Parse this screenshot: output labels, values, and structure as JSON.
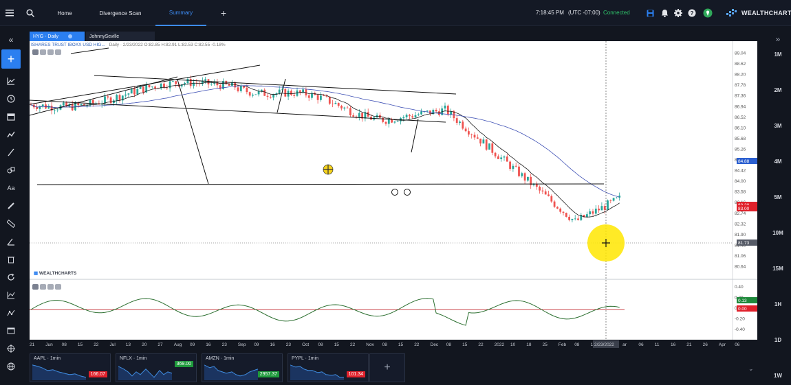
{
  "topbar": {
    "menu_icon": "hamburger-icon",
    "search_icon": "search-icon",
    "tabs": [
      {
        "label": "Home",
        "active": false
      },
      {
        "label": "Divergence Scan",
        "active": false
      },
      {
        "label": "Summary",
        "active": true
      }
    ],
    "add_tab_icon": "plus-icon",
    "time": "7:18:45 PM",
    "timezone": "(UTC -07:00)",
    "status": "Connected",
    "brand": "WEALTHCHARTS"
  },
  "left_toolbar": {
    "collapse_icon": "double-chevron-left-icon",
    "tools": [
      "plus-icon",
      "trend-icon",
      "clock-icon",
      "calendar-icon",
      "line-chart-icon",
      "pencil-line-icon",
      "shapes-icon",
      "text-icon",
      "brush-icon",
      "ruler-icon",
      "angle-icon",
      "trash-icon",
      "refresh-icon",
      "indicator-icon",
      "pattern-icon",
      "window-icon",
      "target-icon",
      "globe-icon"
    ]
  },
  "right_toolbar": {
    "collapse_icon": "double-chevron-right-icon",
    "timeframes": [
      "1M",
      "2M",
      "3M",
      "4M",
      "5M",
      "10M",
      "15M",
      "1H",
      "1D",
      "1W"
    ]
  },
  "chart": {
    "symbol_tab": "HYG - Daily",
    "user_tab": "JohnnySeville",
    "header": "ISHARES TRUST IBOXX USD HIG...",
    "header_ohlc": "Daily · 2/23/2022 O:82.85 H:82.91 L:82.53 C:82.55 -0.18%",
    "watermark": "WEALTHCHARTS",
    "price_ticks": [
      "89.04",
      "88.62",
      "88.20",
      "87.78",
      "87.36",
      "86.94",
      "86.52",
      "86.10",
      "85.68",
      "85.26",
      "84.84",
      "84.42",
      "84.00",
      "83.58",
      "83.16",
      "82.74",
      "82.32",
      "81.90",
      "81.48",
      "81.06",
      "80.64"
    ],
    "price_tags": {
      "blue": "84.88",
      "red_upper": "83.20",
      "red_lower": "83.00",
      "crosshair": "81.73"
    },
    "osc_ticks": [
      "0.40",
      "0.20",
      "0.00",
      "-0.20",
      "-0.40"
    ],
    "osc_tags": {
      "green": "0.13",
      "red": "0.00"
    },
    "date_ticks": [
      "21",
      "Jun",
      "08",
      "15",
      "22",
      "Jul",
      "13",
      "20",
      "27",
      "Aug",
      "09",
      "16",
      "23",
      "Sep",
      "09",
      "16",
      "23",
      "Oct",
      "08",
      "15",
      "22",
      "Nov",
      "08",
      "15",
      "22",
      "Dec",
      "08",
      "15",
      "22",
      "2022",
      "10",
      "18",
      "25",
      "Feb",
      "08",
      "15",
      "2/23/2022",
      "ar",
      "06",
      "11",
      "16",
      "21",
      "26",
      "Apr",
      "06"
    ],
    "cursor_date": "2/23/2022"
  },
  "watchlist": [
    {
      "symbol": "AAPL",
      "interval": "1min",
      "price": "166.07",
      "color": "#e0212b"
    },
    {
      "symbol": "NFLX",
      "interval": "1min",
      "price": "369.00",
      "color": "#1f9a3c"
    },
    {
      "symbol": "AMZN",
      "interval": "1min",
      "price": "2957.37",
      "color": "#1f9a3c"
    },
    {
      "symbol": "PYPL",
      "interval": "1min",
      "price": "101.34",
      "color": "#e0212b"
    }
  ],
  "colors": {
    "accent": "#3d8cf5",
    "up": "#26a69a",
    "down": "#ef5350",
    "ma_fast": "#1a1a1a",
    "ma_slow": "#3f51b5"
  }
}
